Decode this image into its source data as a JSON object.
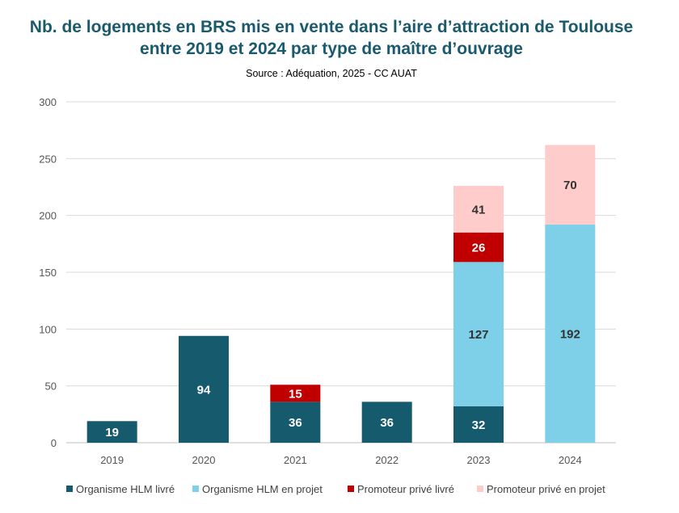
{
  "chart_data": {
    "type": "bar",
    "stacked": true,
    "title": "Nb. de logements en BRS mis en vente dans l’aire d’attraction de Toulouse",
    "title_line2": "entre 2019 et 2024 par type de maître d’ouvrage",
    "subtitle": "Source : Adéquation, 2025 - CC AUAT",
    "xlabel": "",
    "ylabel": "",
    "ylim": [
      0,
      300
    ],
    "yticks": [
      0,
      50,
      100,
      150,
      200,
      250,
      300
    ],
    "grid": true,
    "legend": "bottom",
    "categories": [
      "2019",
      "2020",
      "2021",
      "2022",
      "2023",
      "2024"
    ],
    "series": [
      {
        "name": "Organisme HLM livré",
        "color": "#165a6e",
        "label_color": "#ffffff",
        "values": [
          19,
          94,
          36,
          36,
          32,
          0
        ]
      },
      {
        "name": "Organisme HLM en projet",
        "color": "#7ecfe8",
        "label_color": "#333333",
        "values": [
          0,
          0,
          0,
          0,
          127,
          192
        ]
      },
      {
        "name": "Promoteur privé livré",
        "color": "#c00000",
        "label_color": "#ffffff",
        "values": [
          0,
          0,
          15,
          0,
          26,
          0
        ]
      },
      {
        "name": "Promoteur privé en projet",
        "color": "#ffcccc",
        "label_color": "#333333",
        "values": [
          0,
          0,
          0,
          0,
          41,
          70
        ]
      }
    ]
  }
}
